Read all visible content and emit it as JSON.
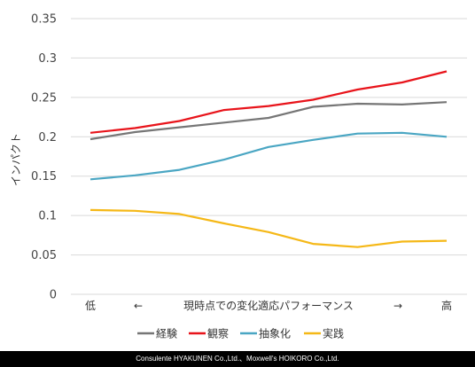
{
  "chart_data": {
    "type": "line",
    "ylabel": "インパクト",
    "ylim": [
      0,
      0.35
    ],
    "yticks": [
      "0",
      "0.05",
      "0.1",
      "0.15",
      "0.2",
      "0.25",
      "0.3",
      "0.35"
    ],
    "x_labels": {
      "left": "低",
      "left_arrow": "←",
      "middle": "現時点での変化適応パフォーマンス",
      "right_arrow": "→",
      "right": "高"
    },
    "grid": "horizontal",
    "legend_position": "bottom",
    "series": [
      {
        "name": "経験",
        "color": "#767676",
        "values": [
          0.197,
          0.206,
          0.212,
          0.218,
          0.224,
          0.238,
          0.242,
          0.241,
          0.244
        ]
      },
      {
        "name": "観察",
        "color": "#e8141b",
        "values": [
          0.205,
          0.211,
          0.22,
          0.234,
          0.239,
          0.247,
          0.26,
          0.269,
          0.283
        ]
      },
      {
        "name": "抽象化",
        "color": "#4aa6c3",
        "values": [
          0.146,
          0.151,
          0.158,
          0.171,
          0.187,
          0.196,
          0.204,
          0.205,
          0.2
        ]
      },
      {
        "name": "実践",
        "color": "#f5b817",
        "values": [
          0.107,
          0.106,
          0.102,
          0.09,
          0.079,
          0.064,
          0.06,
          0.067,
          0.068
        ]
      }
    ]
  },
  "footer": "Consulente HYAKUNEN Co.,Ltd.、Moxwell's HOIKORO Co.,Ltd."
}
